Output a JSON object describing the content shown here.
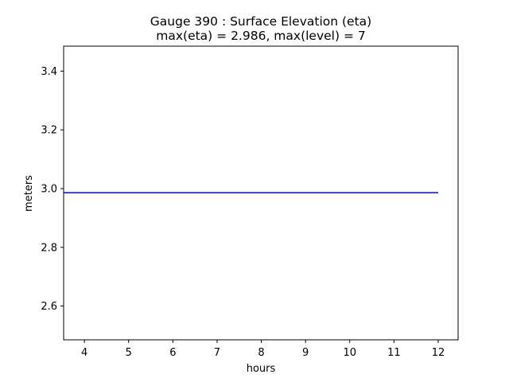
{
  "chart_data": {
    "type": "line",
    "title_line1": "Gauge 390 : Surface Elevation (eta)",
    "title_line2": "max(eta) =   2.986,    max(level) = 7",
    "xlabel": "hours",
    "ylabel": "meters",
    "xlim": [
      3.53,
      12.45
    ],
    "ylim": [
      2.485,
      3.485
    ],
    "xticks": [
      4,
      5,
      6,
      7,
      8,
      9,
      10,
      11,
      12
    ],
    "yticks": [
      2.6,
      2.8,
      3.0,
      3.2,
      3.4
    ],
    "ytick_labels": [
      "2.6",
      "2.8",
      "3.0",
      "3.2",
      "3.4"
    ],
    "grid": false,
    "series": [
      {
        "color": "#0000ff",
        "x": [
          3.53,
          12.0
        ],
        "y": [
          2.986,
          2.986
        ]
      }
    ]
  }
}
